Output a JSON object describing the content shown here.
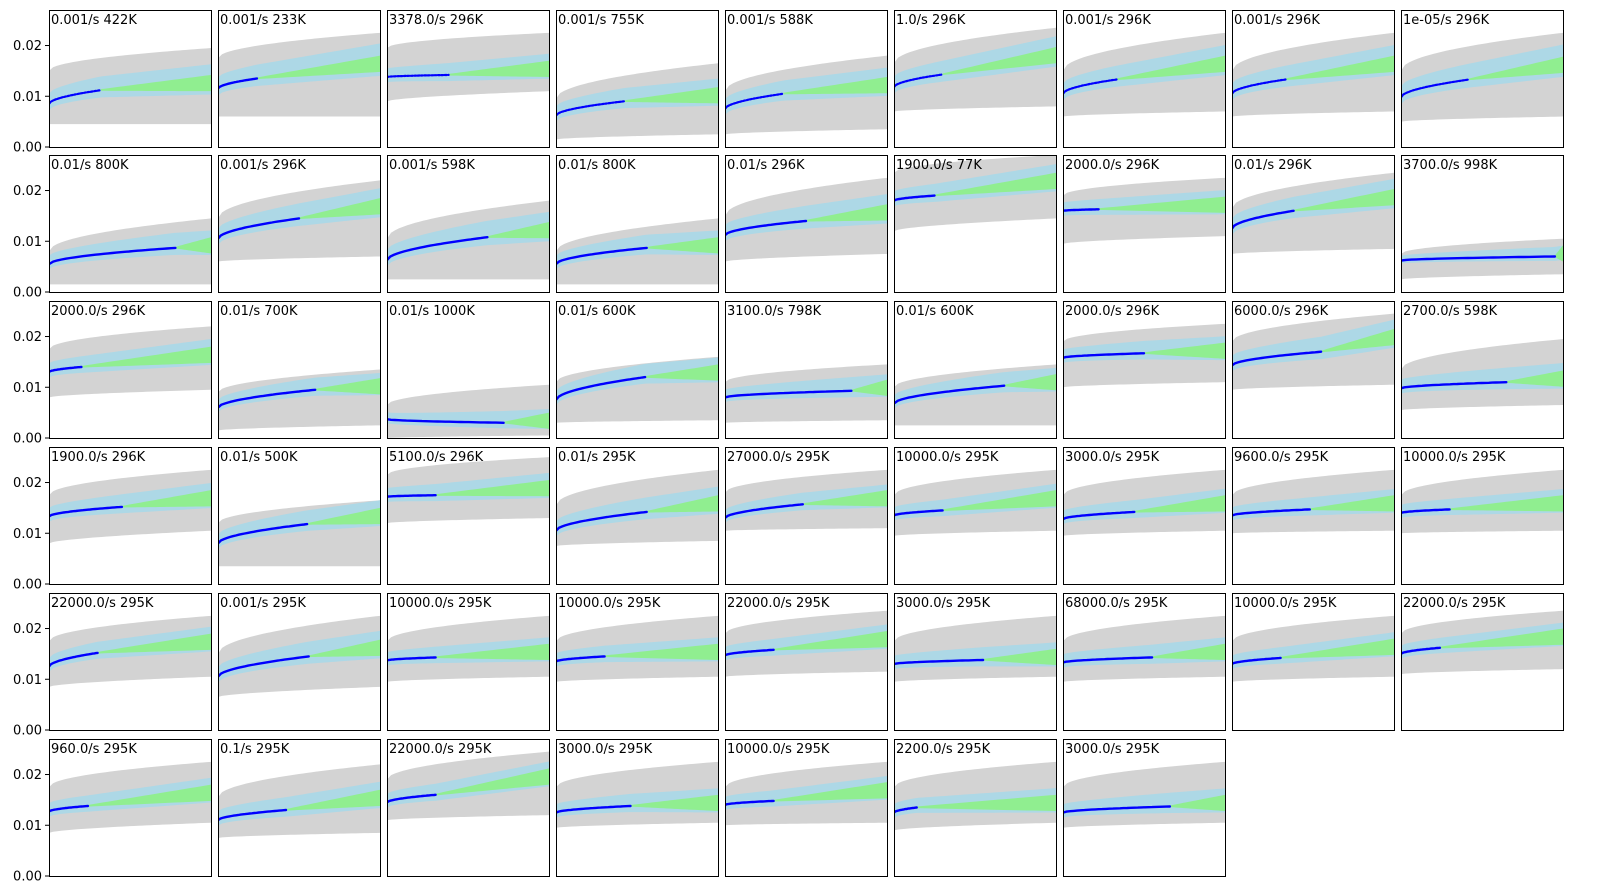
{
  "chart_data": {
    "type": "line",
    "layout": {
      "rows": 6,
      "cols": 9
    },
    "ylim": [
      0.0,
      0.027
    ],
    "xlim": [
      0,
      1
    ],
    "yticks": [
      0.0,
      0.01,
      0.02
    ],
    "ytick_labels": [
      "0.00",
      "0.01",
      "0.02"
    ],
    "grid": false,
    "bands": {
      "outer_color": "#d3d3d3",
      "inner_color": "#add8e6",
      "prediction_color": "#90ee90",
      "data_color": "#0000ff"
    },
    "panels": [
      {
        "label": "0.001/s  422K",
        "y0": 0.0085,
        "y_end": 0.0112,
        "x_end": 0.32,
        "y_far": 0.0122,
        "gray": [
          0.0045,
          0.015
        ],
        "gray_r": [
          0.0045,
          0.0195
        ],
        "dotted": true
      },
      {
        "label": "0.001/s  233K",
        "y0": 0.0115,
        "y_end": 0.0135,
        "x_end": 0.24,
        "y_far": 0.016,
        "gray": [
          0.006,
          0.0175
        ],
        "gray_r": [
          0.006,
          0.0225
        ],
        "dotted": false
      },
      {
        "label": "3378.0/s  296K",
        "y0": 0.0138,
        "y_end": 0.0142,
        "x_end": 0.38,
        "y_far": 0.015,
        "gray": [
          0.009,
          0.0195
        ],
        "gray_r": [
          0.011,
          0.0225
        ],
        "dotted": true
      },
      {
        "label": "0.001/s  755K",
        "y0": 0.0062,
        "y_end": 0.009,
        "x_end": 0.42,
        "y_far": 0.0098,
        "gray": [
          0.0015,
          0.0095
        ],
        "gray_r": [
          0.0025,
          0.0165
        ],
        "dotted": true
      },
      {
        "label": "0.001/s  588K",
        "y0": 0.0075,
        "y_end": 0.0105,
        "x_end": 0.36,
        "y_far": 0.0118,
        "gray": [
          0.0025,
          0.011
        ],
        "gray_r": [
          0.0035,
          0.018
        ],
        "dotted": true
      },
      {
        "label": "1.0/s  296K",
        "y0": 0.0118,
        "y_end": 0.0143,
        "x_end": 0.3,
        "y_far": 0.0177,
        "gray": [
          0.007,
          0.0165
        ],
        "gray_r": [
          0.008,
          0.0235
        ],
        "dotted": true
      },
      {
        "label": "0.001/s  296K",
        "y0": 0.0105,
        "y_end": 0.0133,
        "x_end": 0.33,
        "y_far": 0.016,
        "gray": [
          0.006,
          0.015
        ],
        "gray_r": [
          0.007,
          0.0225
        ],
        "dotted": true
      },
      {
        "label": "0.001/s  296K",
        "y0": 0.0105,
        "y_end": 0.0133,
        "x_end": 0.33,
        "y_far": 0.016,
        "gray": [
          0.006,
          0.015
        ],
        "gray_r": [
          0.007,
          0.0225
        ],
        "dotted": true
      },
      {
        "label": "1e-05/s  296K",
        "y0": 0.0098,
        "y_end": 0.0133,
        "x_end": 0.42,
        "y_far": 0.0158,
        "gray": [
          0.005,
          0.015
        ],
        "gray_r": [
          0.006,
          0.0225
        ],
        "dotted": true
      },
      {
        "label": "0.01/s  800K",
        "y0": 0.0055,
        "y_end": 0.0087,
        "x_end": 0.78,
        "y_far": 0.0088,
        "gray": [
          0.0015,
          0.008
        ],
        "gray_r": [
          0.0015,
          0.0145
        ],
        "dotted": false
      },
      {
        "label": "0.001/s  296K",
        "y0": 0.0105,
        "y_end": 0.0145,
        "x_end": 0.5,
        "y_far": 0.0165,
        "gray": [
          0.006,
          0.0145
        ],
        "gray_r": [
          0.007,
          0.022
        ],
        "dotted": false
      },
      {
        "label": "0.001/s  598K",
        "y0": 0.0063,
        "y_end": 0.0108,
        "x_end": 0.62,
        "y_far": 0.0118,
        "gray": [
          0.0025,
          0.0105
        ],
        "gray_r": [
          0.0025,
          0.018
        ],
        "dotted": false
      },
      {
        "label": "0.01/s  800K",
        "y0": 0.0055,
        "y_end": 0.0087,
        "x_end": 0.56,
        "y_far": 0.0088,
        "gray": [
          0.0015,
          0.008
        ],
        "gray_r": [
          0.0015,
          0.0145
        ],
        "dotted": false
      },
      {
        "label": "0.01/s  296K",
        "y0": 0.0112,
        "y_end": 0.014,
        "x_end": 0.5,
        "y_far": 0.0153,
        "gray": [
          0.006,
          0.015
        ],
        "gray_r": [
          0.0075,
          0.0225
        ],
        "dotted": false
      },
      {
        "label": "1900.0/s  77K",
        "y0": 0.018,
        "y_end": 0.019,
        "x_end": 0.25,
        "y_far": 0.0215,
        "gray": [
          0.012,
          0.0235
        ],
        "gray_r": [
          0.0145,
          0.027
        ],
        "dotted": false
      },
      {
        "label": "2000.0/s  296K",
        "y0": 0.016,
        "y_end": 0.0163,
        "x_end": 0.22,
        "y_far": 0.0168,
        "gray": [
          0.0095,
          0.019
        ],
        "gray_r": [
          0.011,
          0.0225
        ],
        "dotted": false
      },
      {
        "label": "0.01/s  296K",
        "y0": 0.0125,
        "y_end": 0.016,
        "x_end": 0.38,
        "y_far": 0.0183,
        "gray": [
          0.0075,
          0.0165
        ],
        "gray_r": [
          0.0085,
          0.0235
        ],
        "dotted": false
      },
      {
        "label": "3700.0/s  998K",
        "y0": 0.0062,
        "y_end": 0.007,
        "x_end": 0.95,
        "y_far": 0.0072,
        "gray": [
          0.0025,
          0.0075
        ],
        "gray_r": [
          0.0035,
          0.0105
        ],
        "dotted": false
      },
      {
        "label": "2000.0/s  296K",
        "y0": 0.013,
        "y_end": 0.014,
        "x_end": 0.2,
        "y_far": 0.016,
        "gray": [
          0.008,
          0.0175
        ],
        "gray_r": [
          0.0095,
          0.022
        ],
        "dotted": false
      },
      {
        "label": "0.01/s  700K",
        "y0": 0.006,
        "y_end": 0.0095,
        "x_end": 0.6,
        "y_far": 0.0098,
        "gray": [
          0.0015,
          0.009
        ],
        "gray_r": [
          0.0025,
          0.0135
        ],
        "dotted": false
      },
      {
        "label": "0.01/s  1000K",
        "y0": 0.0037,
        "y_end": 0.003,
        "x_end": 0.72,
        "y_far": 0.003,
        "gray": [
          0.0,
          0.0065
        ],
        "gray_r": [
          0.0005,
          0.0105
        ],
        "dotted": false
      },
      {
        "label": "0.01/s  600K",
        "y0": 0.0075,
        "y_end": 0.012,
        "x_end": 0.55,
        "y_far": 0.0125,
        "gray": [
          0.003,
          0.011
        ],
        "gray_r": [
          0.0035,
          0.016
        ],
        "dotted": false
      },
      {
        "label": "3100.0/s  798K",
        "y0": 0.008,
        "y_end": 0.0093,
        "x_end": 0.78,
        "y_far": 0.0095,
        "gray": [
          0.003,
          0.011
        ],
        "gray_r": [
          0.0035,
          0.0145
        ],
        "dotted": false
      },
      {
        "label": "0.01/s  600K",
        "y0": 0.0068,
        "y_end": 0.0103,
        "x_end": 0.68,
        "y_far": 0.0106,
        "gray": [
          0.0025,
          0.01
        ],
        "gray_r": [
          0.0025,
          0.0145
        ],
        "dotted": false
      },
      {
        "label": "2000.0/s  296K",
        "y0": 0.0158,
        "y_end": 0.0167,
        "x_end": 0.5,
        "y_far": 0.0168,
        "gray": [
          0.01,
          0.019
        ],
        "gray_r": [
          0.011,
          0.0225
        ],
        "dotted": false
      },
      {
        "label": "6000.0/s  296K",
        "y0": 0.0143,
        "y_end": 0.017,
        "x_end": 0.55,
        "y_far": 0.0195,
        "gray": [
          0.0095,
          0.019
        ],
        "gray_r": [
          0.0105,
          0.0245
        ],
        "dotted": false
      },
      {
        "label": "2700.0/s  598K",
        "y0": 0.0098,
        "y_end": 0.011,
        "x_end": 0.65,
        "y_far": 0.0113,
        "gray": [
          0.0055,
          0.0135
        ],
        "gray_r": [
          0.0065,
          0.0195
        ],
        "dotted": false
      },
      {
        "label": "1900.0/s  296K",
        "y0": 0.0133,
        "y_end": 0.0152,
        "x_end": 0.45,
        "y_far": 0.0165,
        "gray": [
          0.008,
          0.0175
        ],
        "gray_r": [
          0.0105,
          0.0225
        ],
        "dotted": false
      },
      {
        "label": "0.01/s  500K",
        "y0": 0.008,
        "y_end": 0.0118,
        "x_end": 0.55,
        "y_far": 0.013,
        "gray": [
          0.0035,
          0.012
        ],
        "gray_r": [
          0.0035,
          0.0165
        ],
        "dotted": false
      },
      {
        "label": "5100.0/s  296K",
        "y0": 0.0172,
        "y_end": 0.0175,
        "x_end": 0.3,
        "y_far": 0.0185,
        "gray": [
          0.012,
          0.0215
        ],
        "gray_r": [
          0.013,
          0.025
        ],
        "dotted": false
      },
      {
        "label": "0.01/s  295K",
        "y0": 0.0105,
        "y_end": 0.0142,
        "x_end": 0.56,
        "y_far": 0.0155,
        "gray": [
          0.0075,
          0.0155
        ],
        "gray_r": [
          0.0085,
          0.0225
        ],
        "dotted": false
      },
      {
        "label": "27000.0/s  295K",
        "y0": 0.013,
        "y_end": 0.0157,
        "x_end": 0.48,
        "y_far": 0.0165,
        "gray": [
          0.0105,
          0.018
        ],
        "gray_r": [
          0.011,
          0.0225
        ],
        "dotted": false
      },
      {
        "label": "10000.0/s  295K",
        "y0": 0.0135,
        "y_end": 0.0145,
        "x_end": 0.3,
        "y_far": 0.0165,
        "gray": [
          0.0095,
          0.0175
        ],
        "gray_r": [
          0.0105,
          0.0225
        ],
        "dotted": false
      },
      {
        "label": "3000.0/s  295K",
        "y0": 0.0128,
        "y_end": 0.0142,
        "x_end": 0.44,
        "y_far": 0.0155,
        "gray": [
          0.0095,
          0.0175
        ],
        "gray_r": [
          0.0105,
          0.0225
        ],
        "dotted": false
      },
      {
        "label": "9600.0/s  295K",
        "y0": 0.0135,
        "y_end": 0.0147,
        "x_end": 0.48,
        "y_far": 0.0155,
        "gray": [
          0.01,
          0.0175
        ],
        "gray_r": [
          0.0105,
          0.0225
        ],
        "dotted": false
      },
      {
        "label": "10000.0/s  295K",
        "y0": 0.014,
        "y_end": 0.0147,
        "x_end": 0.3,
        "y_far": 0.0155,
        "gray": [
          0.01,
          0.0175
        ],
        "gray_r": [
          0.0105,
          0.0225
        ],
        "dotted": false
      },
      {
        "label": "22000.0/s  295K",
        "y0": 0.0125,
        "y_end": 0.0152,
        "x_end": 0.3,
        "y_far": 0.017,
        "gray": [
          0.0085,
          0.0175
        ],
        "gray_r": [
          0.0105,
          0.0225
        ],
        "dotted": false
      },
      {
        "label": "0.001/s  295K",
        "y0": 0.0105,
        "y_end": 0.0145,
        "x_end": 0.56,
        "y_far": 0.0158,
        "gray": [
          0.0065,
          0.015
        ],
        "gray_r": [
          0.0085,
          0.0225
        ],
        "dotted": false
      },
      {
        "label": "10000.0/s  295K",
        "y0": 0.0137,
        "y_end": 0.0143,
        "x_end": 0.3,
        "y_far": 0.015,
        "gray": [
          0.0095,
          0.0175
        ],
        "gray_r": [
          0.0105,
          0.0225
        ],
        "dotted": false
      },
      {
        "label": "10000.0/s  295K",
        "y0": 0.0135,
        "y_end": 0.0145,
        "x_end": 0.3,
        "y_far": 0.015,
        "gray": [
          0.0095,
          0.0175
        ],
        "gray_r": [
          0.0105,
          0.0225
        ],
        "dotted": false
      },
      {
        "label": "22000.0/s  295K",
        "y0": 0.0147,
        "y_end": 0.0158,
        "x_end": 0.3,
        "y_far": 0.0175,
        "gray": [
          0.0105,
          0.019
        ],
        "gray_r": [
          0.0115,
          0.0235
        ],
        "dotted": false
      },
      {
        "label": "3000.0/s  295K",
        "y0": 0.013,
        "y_end": 0.0138,
        "x_end": 0.55,
        "y_far": 0.014,
        "gray": [
          0.0095,
          0.0175
        ],
        "gray_r": [
          0.0105,
          0.0225
        ],
        "dotted": false
      },
      {
        "label": "68000.0/s  295K",
        "y0": 0.0133,
        "y_end": 0.0143,
        "x_end": 0.55,
        "y_far": 0.015,
        "gray": [
          0.0095,
          0.0175
        ],
        "gray_r": [
          0.0105,
          0.0225
        ],
        "dotted": false
      },
      {
        "label": "10000.0/s  295K",
        "y0": 0.013,
        "y_end": 0.0142,
        "x_end": 0.3,
        "y_far": 0.016,
        "gray": [
          0.0095,
          0.0175
        ],
        "gray_r": [
          0.0105,
          0.0225
        ],
        "dotted": false
      },
      {
        "label": "22000.0/s  295K",
        "y0": 0.015,
        "y_end": 0.0162,
        "x_end": 0.24,
        "y_far": 0.018,
        "gray": [
          0.011,
          0.019
        ],
        "gray_r": [
          0.012,
          0.0235
        ],
        "dotted": false
      },
      {
        "label": "960.0/s  295K",
        "y0": 0.0127,
        "y_end": 0.0138,
        "x_end": 0.24,
        "y_far": 0.016,
        "gray": [
          0.0085,
          0.0175
        ],
        "gray_r": [
          0.0105,
          0.0225
        ],
        "dotted": false
      },
      {
        "label": "0.1/s  295K",
        "y0": 0.011,
        "y_end": 0.013,
        "x_end": 0.42,
        "y_far": 0.015,
        "gray": [
          0.0075,
          0.0155
        ],
        "gray_r": [
          0.0085,
          0.022
        ],
        "dotted": false
      },
      {
        "label": "22000.0/s  295K",
        "y0": 0.0145,
        "y_end": 0.016,
        "x_end": 0.3,
        "y_far": 0.0192,
        "gray": [
          0.011,
          0.019
        ],
        "gray_r": [
          0.012,
          0.0245
        ],
        "dotted": false
      },
      {
        "label": "3000.0/s  295K",
        "y0": 0.0125,
        "y_end": 0.0138,
        "x_end": 0.46,
        "y_far": 0.014,
        "gray": [
          0.0095,
          0.0175
        ],
        "gray_r": [
          0.0105,
          0.0225
        ],
        "dotted": false
      },
      {
        "label": "10000.0/s  295K",
        "y0": 0.014,
        "y_end": 0.0148,
        "x_end": 0.3,
        "y_far": 0.0165,
        "gray": [
          0.01,
          0.0175
        ],
        "gray_r": [
          0.0105,
          0.0225
        ],
        "dotted": false
      },
      {
        "label": "2200.0/s  295K",
        "y0": 0.0125,
        "y_end": 0.0135,
        "x_end": 0.14,
        "y_far": 0.014,
        "gray": [
          0.009,
          0.0175
        ],
        "gray_r": [
          0.0105,
          0.0225
        ],
        "dotted": false
      },
      {
        "label": "3000.0/s  295K",
        "y0": 0.0125,
        "y_end": 0.0137,
        "x_end": 0.66,
        "y_far": 0.014,
        "gray": [
          0.0095,
          0.0175
        ],
        "gray_r": [
          0.0105,
          0.0225
        ],
        "dotted": false
      }
    ]
  }
}
